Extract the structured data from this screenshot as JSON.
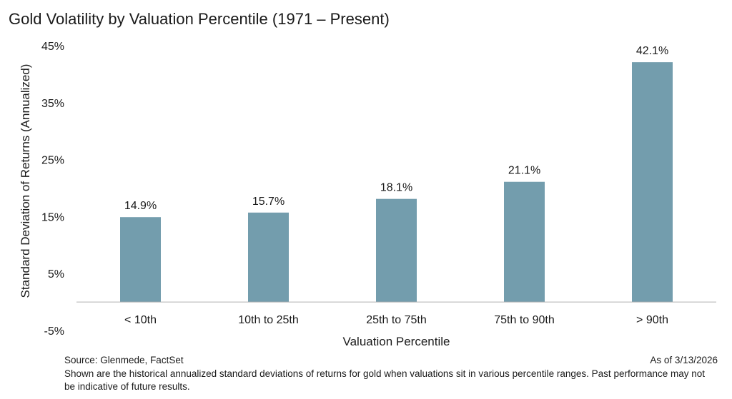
{
  "chart_data": {
    "type": "bar",
    "title": "Gold Volatility by Valuation Percentile (1971 – Present)",
    "xlabel": "Valuation Percentile",
    "ylabel": "Standard Deviation of Returns (Annualized)",
    "categories": [
      "< 10th",
      "10th to 25th",
      "25th to 75th",
      "75th to 90th",
      "> 90th"
    ],
    "values": [
      14.9,
      15.7,
      18.1,
      21.1,
      42.1
    ],
    "data_labels": [
      "14.9%",
      "15.7%",
      "18.1%",
      "21.1%",
      "42.1%"
    ],
    "ylim": [
      -5,
      45
    ],
    "yticks": [
      -5,
      5,
      15,
      25,
      35,
      45
    ],
    "ytick_labels": [
      "-5%",
      "5%",
      "15%",
      "25%",
      "35%",
      "45%"
    ],
    "grid": false,
    "bar_color": "#739dad"
  },
  "footer": {
    "source": "Source: Glenmede, FactSet",
    "date": "As of 3/13/2026",
    "note": "Shown are the historical annualized standard deviations of returns for gold when valuations sit in various percentile ranges. Past performance may not be indicative of future results."
  }
}
